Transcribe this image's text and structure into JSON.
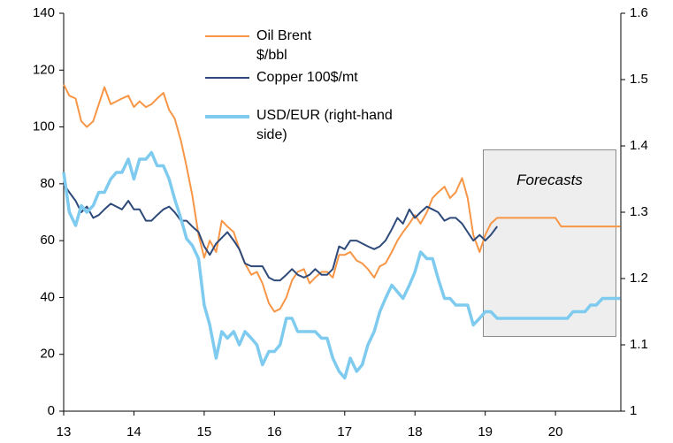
{
  "chart_data": {
    "type": "line",
    "annotation": "Forecasts",
    "x": [
      13,
      13.08,
      13.17,
      13.25,
      13.33,
      13.42,
      13.5,
      13.58,
      13.67,
      13.75,
      13.83,
      13.92,
      14,
      14.08,
      14.17,
      14.25,
      14.33,
      14.42,
      14.5,
      14.58,
      14.67,
      14.75,
      14.83,
      14.92,
      15,
      15.08,
      15.17,
      15.25,
      15.33,
      15.42,
      15.5,
      15.58,
      15.67,
      15.75,
      15.83,
      15.92,
      16,
      16.08,
      16.17,
      16.25,
      16.33,
      16.42,
      16.5,
      16.58,
      16.67,
      16.75,
      16.83,
      16.92,
      17,
      17.08,
      17.17,
      17.25,
      17.33,
      17.42,
      17.5,
      17.58,
      17.67,
      17.75,
      17.83,
      17.92,
      18,
      18.08,
      18.17,
      18.25,
      18.33,
      18.42,
      18.5,
      18.58,
      18.67,
      18.75,
      18.83,
      18.92,
      19,
      19.08,
      19.17,
      19.25,
      19.33,
      19.42,
      19.5,
      19.58,
      19.67,
      19.75,
      19.83,
      19.92,
      20,
      20.08,
      20.17,
      20.25,
      20.33,
      20.42,
      20.5,
      20.58,
      20.67,
      20.75,
      20.83,
      20.92
    ],
    "series": [
      {
        "name": "Oil Brent $/bbl",
        "color": "#f79646",
        "values": [
          115,
          111,
          110,
          102,
          100,
          102,
          108,
          114,
          108,
          109,
          110,
          111,
          107,
          109,
          107,
          108,
          110,
          112,
          106,
          103,
          95,
          86,
          76,
          62,
          54,
          60,
          56,
          67,
          65,
          63,
          57,
          52,
          48,
          49,
          45,
          38,
          35,
          36,
          40,
          46,
          49,
          50,
          45,
          47,
          49,
          49,
          47,
          55,
          55,
          56,
          53,
          52,
          50,
          47,
          51,
          52,
          56,
          60,
          63,
          66,
          69,
          66,
          70,
          75,
          77,
          79,
          75,
          77,
          82,
          75,
          62,
          56,
          62,
          66,
          68,
          68,
          68,
          68,
          68,
          68,
          68,
          68,
          68,
          68,
          68,
          65,
          65,
          65,
          65,
          65,
          65,
          65,
          65,
          65,
          65,
          65
        ]
      },
      {
        "name": "Copper 100$/mt",
        "color": "#2e4a7a",
        "values": [
          80,
          77,
          74,
          70,
          72,
          68,
          69,
          71,
          73,
          72,
          71,
          74,
          71,
          71,
          67,
          67,
          69,
          71,
          72,
          70,
          67,
          67,
          65,
          63,
          58,
          55,
          59,
          61,
          63,
          60,
          57,
          52,
          51,
          51,
          51,
          47,
          46,
          46,
          48,
          50,
          48,
          47,
          48,
          50,
          48,
          48,
          50,
          58,
          57,
          60,
          60,
          59,
          58,
          57,
          58,
          60,
          64,
          68,
          66,
          71,
          68,
          70,
          72,
          71,
          70,
          67,
          68,
          68,
          66,
          63,
          60,
          62,
          60,
          62,
          65,
          null,
          null,
          null,
          null,
          null,
          null,
          null,
          null,
          null,
          null,
          null,
          null,
          null,
          null,
          null,
          null,
          null,
          null,
          null,
          null,
          null
        ]
      },
      {
        "name": "USD/EUR (right-hand side)",
        "color": "#7ecbef",
        "axis": "y2",
        "values": [
          1.36,
          1.3,
          1.28,
          1.31,
          1.3,
          1.31,
          1.33,
          1.33,
          1.35,
          1.36,
          1.36,
          1.38,
          1.35,
          1.38,
          1.38,
          1.39,
          1.37,
          1.37,
          1.35,
          1.32,
          1.29,
          1.26,
          1.25,
          1.23,
          1.16,
          1.13,
          1.08,
          1.12,
          1.11,
          1.12,
          1.1,
          1.12,
          1.11,
          1.1,
          1.07,
          1.09,
          1.09,
          1.1,
          1.14,
          1.14,
          1.12,
          1.12,
          1.12,
          1.12,
          1.11,
          1.11,
          1.08,
          1.06,
          1.05,
          1.08,
          1.06,
          1.07,
          1.1,
          1.12,
          1.15,
          1.17,
          1.19,
          1.18,
          1.17,
          1.19,
          1.21,
          1.24,
          1.23,
          1.23,
          1.2,
          1.17,
          1.17,
          1.16,
          1.16,
          1.16,
          1.13,
          1.14,
          1.15,
          1.15,
          1.14,
          1.14,
          1.14,
          1.14,
          1.14,
          1.14,
          1.14,
          1.14,
          1.14,
          1.14,
          1.14,
          1.14,
          1.14,
          1.15,
          1.15,
          1.15,
          1.16,
          1.16,
          1.17,
          1.17,
          1.17,
          1.17
        ]
      }
    ],
    "xlim": [
      13,
      20.93
    ],
    "xticks": [
      13,
      14,
      15,
      16,
      17,
      18,
      19,
      20
    ],
    "ylim": [
      0,
      140
    ],
    "yticks": [
      0,
      20,
      40,
      60,
      80,
      100,
      120,
      140
    ],
    "y2lim": [
      1,
      1.6
    ],
    "y2ticks": [
      1,
      1.1,
      1.2,
      1.3,
      1.4,
      1.5,
      1.6
    ],
    "grid": false
  }
}
